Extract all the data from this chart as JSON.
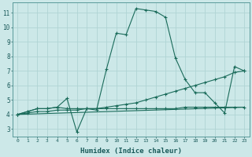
{
  "xlabel": "Humidex (Indice chaleur)",
  "bg_color": "#cce8e8",
  "grid_color": "#b0d4d4",
  "line_color": "#1a6b5a",
  "xlim": [
    -0.5,
    23.5
  ],
  "ylim": [
    2.5,
    11.7
  ],
  "xticks": [
    0,
    1,
    2,
    3,
    4,
    5,
    6,
    7,
    8,
    9,
    10,
    11,
    12,
    13,
    14,
    15,
    16,
    17,
    18,
    19,
    20,
    21,
    22,
    23
  ],
  "yticks": [
    3,
    4,
    5,
    6,
    7,
    8,
    9,
    10,
    11
  ],
  "series1": [
    [
      0,
      4.0
    ],
    [
      1,
      4.2
    ],
    [
      2,
      4.4
    ],
    [
      3,
      4.4
    ],
    [
      4,
      4.5
    ],
    [
      5,
      5.1
    ],
    [
      6,
      2.8
    ],
    [
      7,
      4.4
    ],
    [
      8,
      4.3
    ],
    [
      9,
      7.1
    ],
    [
      10,
      9.6
    ],
    [
      11,
      9.5
    ],
    [
      12,
      11.3
    ],
    [
      13,
      11.2
    ],
    [
      14,
      11.1
    ],
    [
      15,
      10.7
    ],
    [
      16,
      7.9
    ],
    [
      17,
      6.4
    ],
    [
      18,
      5.5
    ],
    [
      19,
      5.5
    ],
    [
      20,
      4.8
    ],
    [
      21,
      4.1
    ],
    [
      22,
      7.3
    ],
    [
      23,
      7.0
    ]
  ],
  "series2": [
    [
      0,
      4.0
    ],
    [
      1,
      4.2
    ],
    [
      2,
      4.4
    ],
    [
      3,
      4.4
    ],
    [
      4,
      4.5
    ],
    [
      5,
      4.4
    ],
    [
      6,
      4.4
    ],
    [
      7,
      4.4
    ],
    [
      8,
      4.4
    ],
    [
      9,
      4.5
    ],
    [
      10,
      4.6
    ],
    [
      11,
      4.7
    ],
    [
      12,
      4.8
    ],
    [
      13,
      5.0
    ],
    [
      14,
      5.2
    ],
    [
      15,
      5.4
    ],
    [
      16,
      5.6
    ],
    [
      17,
      5.8
    ],
    [
      18,
      6.0
    ],
    [
      19,
      6.2
    ],
    [
      20,
      6.4
    ],
    [
      21,
      6.6
    ],
    [
      22,
      6.9
    ],
    [
      23,
      7.0
    ]
  ],
  "series3": [
    [
      0,
      4.0
    ],
    [
      1,
      4.1
    ],
    [
      2,
      4.2
    ],
    [
      3,
      4.2
    ],
    [
      4,
      4.3
    ],
    [
      5,
      4.3
    ],
    [
      6,
      4.3
    ],
    [
      7,
      4.4
    ],
    [
      8,
      4.4
    ],
    [
      9,
      4.4
    ],
    [
      10,
      4.4
    ],
    [
      11,
      4.4
    ],
    [
      12,
      4.4
    ],
    [
      13,
      4.4
    ],
    [
      14,
      4.4
    ],
    [
      15,
      4.4
    ],
    [
      16,
      4.4
    ],
    [
      17,
      4.5
    ],
    [
      18,
      4.5
    ],
    [
      19,
      4.5
    ],
    [
      20,
      4.5
    ],
    [
      21,
      4.5
    ],
    [
      22,
      4.5
    ],
    [
      23,
      4.5
    ]
  ],
  "series4": [
    [
      0,
      4.0
    ],
    [
      23,
      4.5
    ]
  ]
}
